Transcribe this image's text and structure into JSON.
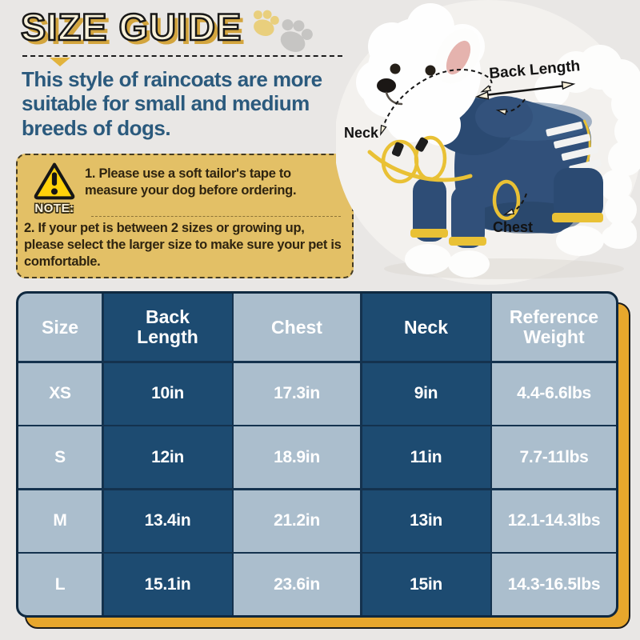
{
  "header": {
    "title": "SIZE GUIDE"
  },
  "intro": {
    "text": "This style of raincoats are more suitable for small and medium breeds of dogs."
  },
  "note": {
    "label": "NOTE:",
    "item1": "1. Please use a soft tailor's tape to measure your dog before ordering.",
    "item2": "2. If your pet is between 2 sizes or growing up, please select the larger size to make sure your pet is comfortable."
  },
  "diagram": {
    "back_length_label": "Back Length",
    "neck_label": "Neck",
    "chest_label": "Chest"
  },
  "size_table": {
    "columns": [
      "Size",
      "Back Length",
      "Chest",
      "Neck",
      "Reference Weight"
    ],
    "rows": [
      [
        "XS",
        "10in",
        "17.3in",
        "9in",
        "4.4-6.6lbs"
      ],
      [
        "S",
        "12in",
        "18.9in",
        "11in",
        "7.7-11lbs"
      ],
      [
        "M",
        "13.4in",
        "21.2in",
        "13in",
        "12.1-14.3lbs"
      ],
      [
        "L",
        "15.1in",
        "23.6in",
        "15in",
        "14.3-16.5lbs"
      ]
    ]
  },
  "colors": {
    "accent_gold": "#E8A72C",
    "title_fill": "#F8F1DA",
    "title_shadow": "#D3A53E",
    "intro_text": "#2B5A7D",
    "note_background": "#E3C066",
    "table_dark_cell": "#1D4B71",
    "table_light_cell": "#ABBECD",
    "table_border": "#14324E",
    "raincoat_navy": "#31507A",
    "cord_yellow": "#E9C135"
  }
}
